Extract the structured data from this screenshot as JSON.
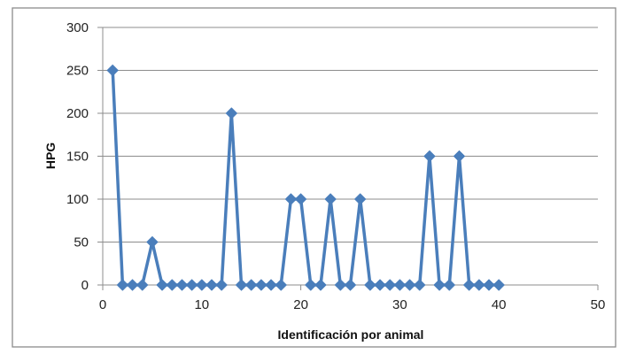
{
  "chart_data": {
    "type": "scatter",
    "title": "",
    "xlabel": "Identificación por animal",
    "ylabel": "HPG",
    "xlim": [
      0,
      50
    ],
    "ylim": [
      0,
      300
    ],
    "x_ticks": [
      0,
      10,
      20,
      30,
      40,
      50
    ],
    "y_ticks": [
      0,
      50,
      100,
      150,
      200,
      250,
      300
    ],
    "grid": "horizontal",
    "marker": "diamond",
    "lines": true,
    "series": [
      {
        "color": "#4a7ebb",
        "x": [
          1,
          2,
          3,
          4,
          5,
          6,
          7,
          8,
          9,
          10,
          11,
          12,
          13,
          14,
          15,
          16,
          17,
          18,
          19,
          20,
          21,
          22,
          23,
          24,
          25,
          26,
          27,
          28,
          29,
          30,
          31,
          32,
          33,
          34,
          35,
          36,
          37,
          38,
          39,
          40
        ],
        "y": [
          250,
          0,
          0,
          0,
          50,
          0,
          0,
          0,
          0,
          0,
          0,
          0,
          200,
          0,
          0,
          0,
          0,
          0,
          100,
          100,
          0,
          0,
          100,
          0,
          0,
          100,
          0,
          0,
          0,
          0,
          0,
          0,
          150,
          0,
          0,
          150,
          0,
          0,
          0,
          0
        ]
      }
    ]
  }
}
